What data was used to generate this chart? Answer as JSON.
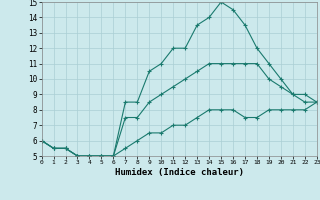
{
  "xlabel": "Humidex (Indice chaleur)",
  "xlim": [
    0,
    23
  ],
  "ylim": [
    5,
    15
  ],
  "xticks": [
    0,
    1,
    2,
    3,
    4,
    5,
    6,
    7,
    8,
    9,
    10,
    11,
    12,
    13,
    14,
    15,
    16,
    17,
    18,
    19,
    20,
    21,
    22,
    23
  ],
  "yticks": [
    5,
    6,
    7,
    8,
    9,
    10,
    11,
    12,
    13,
    14,
    15
  ],
  "bg_color": "#cce9ec",
  "grid_color": "#aacfd4",
  "line_color": "#1a7a6e",
  "series": {
    "max": {
      "x": [
        0,
        1,
        2,
        3,
        4,
        5,
        6,
        7,
        8,
        9,
        10,
        11,
        12,
        13,
        14,
        15,
        16,
        17,
        18,
        19,
        20,
        21,
        22,
        23
      ],
      "y": [
        6,
        5.5,
        5.5,
        5,
        5,
        5,
        5,
        8.5,
        8.5,
        10.5,
        11,
        12,
        12,
        13.5,
        14,
        15,
        14.5,
        13.5,
        12,
        11,
        10,
        9,
        8.5,
        8.5
      ]
    },
    "mean": {
      "x": [
        0,
        1,
        2,
        3,
        4,
        5,
        6,
        7,
        8,
        9,
        10,
        11,
        12,
        13,
        14,
        15,
        16,
        17,
        18,
        19,
        20,
        21,
        22,
        23
      ],
      "y": [
        6,
        5.5,
        5.5,
        5,
        5,
        5,
        5,
        7.5,
        7.5,
        8.5,
        9,
        9.5,
        10,
        10.5,
        11,
        11,
        11,
        11,
        11,
        10,
        9.5,
        9,
        9,
        8.5
      ]
    },
    "min": {
      "x": [
        0,
        1,
        2,
        3,
        4,
        5,
        6,
        7,
        8,
        9,
        10,
        11,
        12,
        13,
        14,
        15,
        16,
        17,
        18,
        19,
        20,
        21,
        22,
        23
      ],
      "y": [
        6,
        5.5,
        5.5,
        5,
        5,
        5,
        5,
        5.5,
        6,
        6.5,
        6.5,
        7,
        7,
        7.5,
        8,
        8,
        8,
        7.5,
        7.5,
        8,
        8,
        8,
        8,
        8.5
      ]
    }
  }
}
